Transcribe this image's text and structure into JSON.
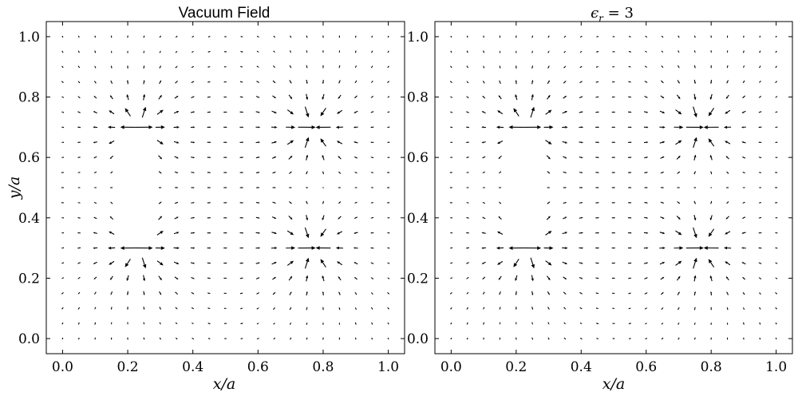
{
  "chart_data": [
    {
      "type": "quiver",
      "title": "Vacuum Field",
      "xlabel": "x/a",
      "ylabel": "y/a",
      "xlim": [
        -0.05,
        1.05
      ],
      "ylim": [
        -0.05,
        1.05
      ],
      "xticks": [
        "0.0",
        "0.2",
        "0.4",
        "0.6",
        "0.8",
        "1.0"
      ],
      "yticks": [
        "0.0",
        "0.2",
        "0.4",
        "0.6",
        "0.8",
        "1.0"
      ],
      "grid": "off",
      "field": {
        "grid_x": [
          0.0,
          0.05,
          0.1,
          0.15,
          0.2,
          0.25,
          0.3,
          0.35,
          0.4,
          0.45,
          0.5,
          0.55,
          0.6,
          0.65,
          0.7,
          0.75,
          0.8,
          0.85,
          0.9,
          0.95,
          1.0
        ],
        "grid_y": [
          0.0,
          0.05,
          0.1,
          0.15,
          0.2,
          0.25,
          0.3,
          0.35,
          0.4,
          0.45,
          0.5,
          0.55,
          0.6,
          0.65,
          0.7,
          0.75,
          0.8,
          0.85,
          0.9,
          0.95,
          1.0
        ],
        "sources": [
          {
            "x": 0.235,
            "y": 0.3,
            "q": 1
          },
          {
            "x": 0.235,
            "y": 0.7,
            "q": 1
          },
          {
            "x": 0.765,
            "y": 0.3,
            "q": -1
          },
          {
            "x": 0.765,
            "y": 0.7,
            "q": -1
          }
        ],
        "masked_region": {
          "x": [
            0.2,
            0.25
          ],
          "y": [
            0.3,
            0.7
          ]
        }
      }
    },
    {
      "type": "quiver",
      "title": "ϵr = 3",
      "title_base": "ϵ",
      "title_sub": "r",
      "title_rest": " = 3",
      "xlabel": "x/a",
      "ylabel": "",
      "xlim": [
        -0.05,
        1.05
      ],
      "ylim": [
        -0.05,
        1.05
      ],
      "xticks": [
        "0.0",
        "0.2",
        "0.4",
        "0.6",
        "0.8",
        "1.0"
      ],
      "yticks": [
        "0.0",
        "0.2",
        "0.4",
        "0.6",
        "0.8",
        "1.0"
      ],
      "grid": "off",
      "field": {
        "grid_x": [
          0.0,
          0.05,
          0.1,
          0.15,
          0.2,
          0.25,
          0.3,
          0.35,
          0.4,
          0.45,
          0.5,
          0.55,
          0.6,
          0.65,
          0.7,
          0.75,
          0.8,
          0.85,
          0.9,
          0.95,
          1.0
        ],
        "grid_y": [
          0.0,
          0.05,
          0.1,
          0.15,
          0.2,
          0.25,
          0.3,
          0.35,
          0.4,
          0.45,
          0.5,
          0.55,
          0.6,
          0.65,
          0.7,
          0.75,
          0.8,
          0.85,
          0.9,
          0.95,
          1.0
        ],
        "sources": [
          {
            "x": 0.235,
            "y": 0.3,
            "q": 1
          },
          {
            "x": 0.235,
            "y": 0.7,
            "q": 1
          },
          {
            "x": 0.765,
            "y": 0.3,
            "q": -1
          },
          {
            "x": 0.765,
            "y": 0.7,
            "q": -1
          }
        ],
        "masked_region": {
          "x": [
            0.2,
            0.25
          ],
          "y": [
            0.3,
            0.7
          ]
        },
        "dielectric_constant": 3
      }
    }
  ]
}
